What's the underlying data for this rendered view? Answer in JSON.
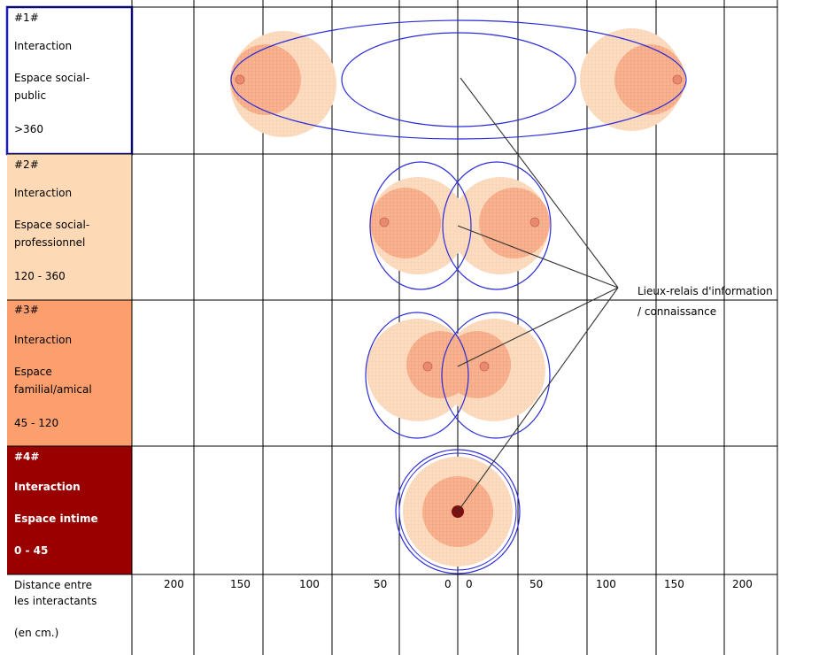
{
  "zones": [
    {
      "id": "#1#",
      "interaction": "Interaction",
      "space_line1": "Espace social-",
      "space_line2": "public",
      "range": ">360",
      "color": "#ffffff"
    },
    {
      "id": "#2#",
      "interaction": "Interaction",
      "space_line1": "Espace social-",
      "space_line2": "professionnel",
      "range": "120 - 360",
      "color": "#fdd9b5"
    },
    {
      "id": "#3#",
      "interaction": "Interaction",
      "space_line1": "Espace",
      "space_line2": "familial/amical",
      "range": "45 - 120",
      "color": "#fc9f6c"
    },
    {
      "id": "#4#",
      "interaction": "Interaction",
      "space_line1": "Espace intime",
      "space_line2": "",
      "range": "0 - 45",
      "color": "#990000"
    }
  ],
  "callout": {
    "line1": "Lieux-relais d'information",
    "line2": "/ connaissance"
  },
  "axis": {
    "label_line1": "Distance entre",
    "label_line2": "les interactants",
    "label_line3": "(en cm.)",
    "ticks": [
      "200",
      "150",
      "100",
      "50",
      "0",
      "0",
      "50",
      "100",
      "150",
      "200"
    ]
  },
  "colors": {
    "outer_zone": "#fcdcc0",
    "inner_zone": "#f79c82",
    "ellipse_stroke": "#2a2ad8",
    "person_dot": "#7a1010",
    "grid": "#000000"
  },
  "icons": {
    "person": "person-dot-icon"
  }
}
